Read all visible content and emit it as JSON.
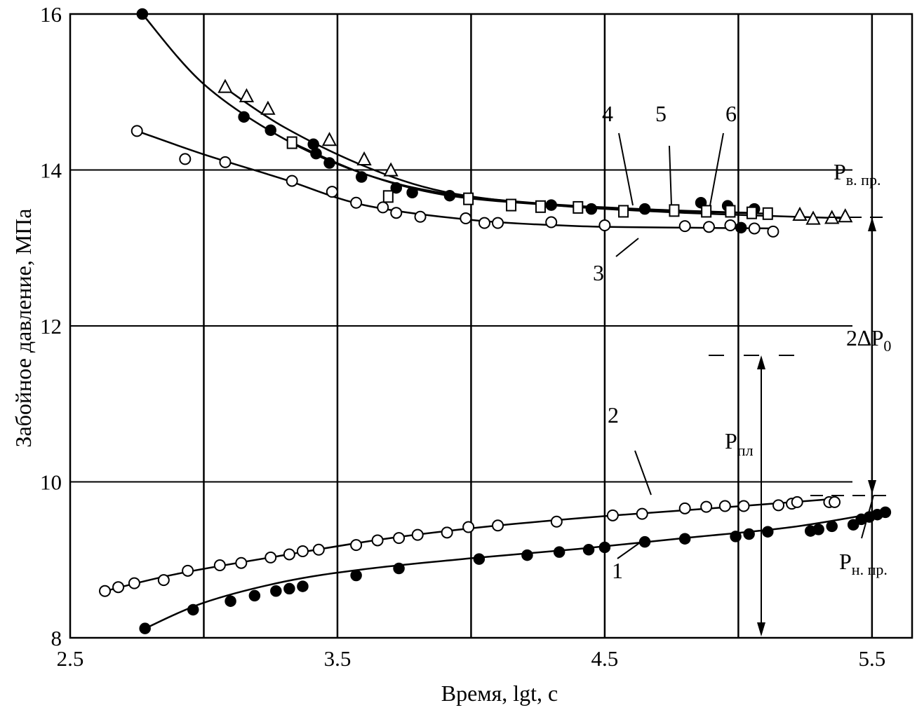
{
  "chart_data": {
    "type": "scatter",
    "xlabel": "Время, lgt, с",
    "ylabel": "Забойное давление, МПа",
    "xlim": [
      2.5,
      5.65
    ],
    "ylim": [
      8,
      16
    ],
    "xticks": [
      "2.5",
      "3.5",
      "4.5",
      "5.5"
    ],
    "yticks": [
      "8",
      "10",
      "12",
      "14",
      "16"
    ],
    "grid": true,
    "series": [
      {
        "name": "1",
        "marker": "filled-circle",
        "curve": [
          [
            2.78,
            8.12
          ],
          [
            3.0,
            8.45
          ],
          [
            3.3,
            8.72
          ],
          [
            3.6,
            8.88
          ],
          [
            4.0,
            9.02
          ],
          [
            4.4,
            9.14
          ],
          [
            4.8,
            9.28
          ],
          [
            5.2,
            9.42
          ],
          [
            5.55,
            9.62
          ]
        ],
        "points": [
          [
            2.78,
            8.12
          ],
          [
            2.96,
            8.36
          ],
          [
            3.1,
            8.47
          ],
          [
            3.19,
            8.54
          ],
          [
            3.27,
            8.6
          ],
          [
            3.32,
            8.63
          ],
          [
            3.37,
            8.66
          ],
          [
            3.57,
            8.8
          ],
          [
            3.73,
            8.89
          ],
          [
            4.03,
            9.01
          ],
          [
            4.21,
            9.06
          ],
          [
            4.33,
            9.1
          ],
          [
            4.44,
            9.13
          ],
          [
            4.5,
            9.16
          ],
          [
            4.65,
            9.23
          ],
          [
            4.8,
            9.27
          ],
          [
            4.99,
            9.3
          ],
          [
            5.04,
            9.33
          ],
          [
            5.11,
            9.36
          ],
          [
            5.27,
            9.37
          ],
          [
            5.3,
            9.39
          ],
          [
            5.35,
            9.43
          ],
          [
            5.43,
            9.45
          ],
          [
            5.46,
            9.52
          ],
          [
            5.49,
            9.55
          ],
          [
            5.52,
            9.58
          ],
          [
            5.55,
            9.61
          ]
        ]
      },
      {
        "name": "2",
        "marker": "open-circle",
        "curve": [
          [
            2.63,
            8.6
          ],
          [
            2.9,
            8.82
          ],
          [
            3.3,
            9.06
          ],
          [
            3.7,
            9.28
          ],
          [
            4.1,
            9.44
          ],
          [
            4.5,
            9.56
          ],
          [
            4.9,
            9.66
          ],
          [
            5.35,
            9.78
          ]
        ],
        "points": [
          [
            2.63,
            8.6
          ],
          [
            2.68,
            8.65
          ],
          [
            2.74,
            8.7
          ],
          [
            2.85,
            8.74
          ],
          [
            2.94,
            8.86
          ],
          [
            3.06,
            8.93
          ],
          [
            3.14,
            8.96
          ],
          [
            3.25,
            9.03
          ],
          [
            3.32,
            9.07
          ],
          [
            3.37,
            9.11
          ],
          [
            3.43,
            9.13
          ],
          [
            3.57,
            9.19
          ],
          [
            3.65,
            9.25
          ],
          [
            3.73,
            9.28
          ],
          [
            3.8,
            9.32
          ],
          [
            3.91,
            9.35
          ],
          [
            3.99,
            9.42
          ],
          [
            4.1,
            9.44
          ],
          [
            4.32,
            9.49
          ],
          [
            4.53,
            9.57
          ],
          [
            4.64,
            9.59
          ],
          [
            4.8,
            9.66
          ],
          [
            4.88,
            9.68
          ],
          [
            4.95,
            9.69
          ],
          [
            5.02,
            9.69
          ],
          [
            5.15,
            9.7
          ],
          [
            5.2,
            9.72
          ],
          [
            5.22,
            9.74
          ],
          [
            5.34,
            9.74
          ],
          [
            5.36,
            9.74
          ]
        ]
      },
      {
        "name": "3",
        "marker": "open-circle",
        "curve": [
          [
            2.75,
            14.5
          ],
          [
            3.0,
            14.2
          ],
          [
            3.3,
            13.88
          ],
          [
            3.6,
            13.55
          ],
          [
            4.0,
            13.36
          ],
          [
            4.4,
            13.28
          ],
          [
            4.8,
            13.26
          ],
          [
            5.12,
            13.25
          ]
        ],
        "points": [
          [
            2.75,
            14.5
          ],
          [
            2.93,
            14.14
          ],
          [
            3.08,
            14.1
          ],
          [
            3.33,
            13.86
          ],
          [
            3.48,
            13.72
          ],
          [
            3.57,
            13.58
          ],
          [
            3.67,
            13.52
          ],
          [
            3.72,
            13.45
          ],
          [
            3.81,
            13.4
          ],
          [
            3.98,
            13.38
          ],
          [
            4.05,
            13.32
          ],
          [
            4.1,
            13.32
          ],
          [
            4.3,
            13.33
          ],
          [
            4.5,
            13.29
          ],
          [
            4.8,
            13.28
          ],
          [
            4.89,
            13.27
          ],
          [
            4.97,
            13.29
          ],
          [
            5.06,
            13.25
          ],
          [
            5.13,
            13.21
          ]
        ]
      },
      {
        "name": "4",
        "marker": "filled-circle",
        "curve": [
          [
            2.77,
            16.0
          ],
          [
            3.0,
            15.1
          ],
          [
            3.3,
            14.4
          ],
          [
            3.6,
            13.95
          ],
          [
            3.9,
            13.7
          ],
          [
            4.3,
            13.56
          ],
          [
            4.7,
            13.49
          ],
          [
            5.05,
            13.45
          ]
        ],
        "points": [
          [
            2.77,
            16.0
          ],
          [
            3.15,
            14.68
          ],
          [
            3.25,
            14.51
          ],
          [
            3.41,
            14.33
          ],
          [
            3.42,
            14.21
          ],
          [
            3.47,
            14.09
          ],
          [
            3.59,
            13.91
          ],
          [
            3.72,
            13.77
          ],
          [
            3.78,
            13.71
          ],
          [
            3.92,
            13.67
          ],
          [
            4.3,
            13.55
          ],
          [
            4.45,
            13.5
          ],
          [
            4.65,
            13.5
          ],
          [
            4.86,
            13.58
          ],
          [
            4.96,
            13.54
          ],
          [
            5.01,
            13.26
          ],
          [
            5.06,
            13.5
          ]
        ]
      },
      {
        "name": "5",
        "marker": "open-square",
        "curve": [
          [
            3.33,
            14.35
          ],
          [
            3.6,
            13.95
          ],
          [
            3.9,
            13.68
          ],
          [
            4.3,
            13.55
          ],
          [
            4.7,
            13.48
          ],
          [
            5.12,
            13.44
          ]
        ],
        "points": [
          [
            3.33,
            14.35
          ],
          [
            3.69,
            13.66
          ],
          [
            3.99,
            13.63
          ],
          [
            4.15,
            13.55
          ],
          [
            4.26,
            13.53
          ],
          [
            4.4,
            13.52
          ],
          [
            4.57,
            13.47
          ],
          [
            4.76,
            13.48
          ],
          [
            4.88,
            13.47
          ],
          [
            4.97,
            13.47
          ],
          [
            5.05,
            13.45
          ],
          [
            5.11,
            13.44
          ]
        ]
      },
      {
        "name": "6",
        "marker": "open-triangle",
        "curve": [
          [
            3.08,
            15.05
          ],
          [
            3.3,
            14.55
          ],
          [
            3.6,
            14.05
          ],
          [
            3.9,
            13.72
          ],
          [
            4.3,
            13.55
          ],
          [
            4.8,
            13.45
          ],
          [
            5.4,
            13.38
          ]
        ],
        "points": [
          [
            3.08,
            15.06
          ],
          [
            3.16,
            14.94
          ],
          [
            3.24,
            14.78
          ],
          [
            3.47,
            14.38
          ],
          [
            3.6,
            14.13
          ],
          [
            3.7,
            13.99
          ],
          [
            5.23,
            13.42
          ],
          [
            5.28,
            13.37
          ],
          [
            5.35,
            13.38
          ],
          [
            5.4,
            13.4
          ]
        ]
      }
    ],
    "annotations": {
      "curve_labels": [
        "1",
        "2",
        "3",
        "4",
        "5",
        "6"
      ],
      "P_upper": {
        "main": "P",
        "sub": "в. пр."
      },
      "P_lower": {
        "main": "P",
        "sub": "н. пр."
      },
      "P_formation": {
        "main": "P",
        "sub": "пл"
      },
      "delta": "2∆P",
      "delta_sub": "0"
    }
  }
}
